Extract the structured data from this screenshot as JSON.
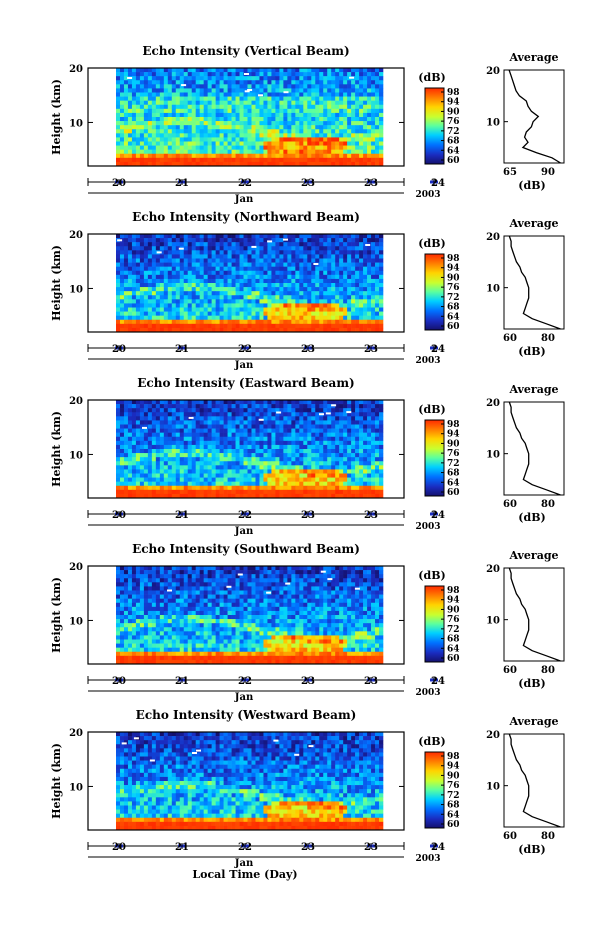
{
  "figure": {
    "xlabel": "Local Time (Day)",
    "colorbar_unit": "(dB)",
    "colorbar_ticks": [
      "98",
      "94",
      "90",
      "76",
      "72",
      "68",
      "64",
      "60"
    ],
    "colorbar_colors": [
      "#ff2a00",
      "#ff7a00",
      "#ffd400",
      "#c8ff30",
      "#5affa0",
      "#00d0ff",
      "#0070ff",
      "#1a2cc0",
      "#14106e"
    ],
    "height_label": "Height (km)",
    "height_ticks": [
      "20",
      "10"
    ],
    "day_ticks": [
      "20",
      "21",
      "22",
      "23",
      "23",
      "24"
    ],
    "month_label": "Jan",
    "year_label": "2003",
    "avg_title": "Average",
    "avg_xlabel": "(dB)"
  },
  "chart_data": [
    {
      "type": "heatmap",
      "title": "Echo Intensity (Vertical Beam)",
      "ylabel": "Height (km)",
      "ylim": [
        2,
        20
      ],
      "x_ticks": [
        "20",
        "21",
        "22",
        "23",
        "23",
        "24"
      ],
      "x_day_range": [
        19.5,
        24.5
      ],
      "colorbar_label": "(dB)",
      "colorbar_range": [
        60,
        98
      ],
      "average_profile": {
        "title": "Average",
        "xlabel": "(dB)",
        "x_ticks": [
          "65",
          "90"
        ],
        "xlim": [
          60,
          95
        ],
        "height": [
          20,
          19,
          18,
          17,
          16,
          15,
          14,
          13,
          12,
          11,
          10,
          9,
          8,
          7,
          6,
          5,
          4,
          3,
          2
        ],
        "db": [
          63,
          64,
          65,
          66,
          67,
          69,
          73,
          74,
          76,
          80,
          77,
          76,
          73,
          72,
          74,
          71,
          79,
          88,
          93
        ]
      }
    },
    {
      "type": "heatmap",
      "title": "Echo Intensity (Northward Beam)",
      "ylabel": "Height (km)",
      "ylim": [
        2,
        20
      ],
      "x_ticks": [
        "20",
        "21",
        "22",
        "23",
        "23",
        "24"
      ],
      "x_day_range": [
        19.5,
        24.5
      ],
      "colorbar_label": "(dB)",
      "colorbar_range": [
        60,
        98
      ],
      "average_profile": {
        "title": "Average",
        "xlabel": "(dB)",
        "x_ticks": [
          "60",
          "80"
        ],
        "xlim": [
          58,
          92
        ],
        "height": [
          20,
          19,
          18,
          17,
          16,
          15,
          14,
          13,
          12,
          11,
          10,
          9,
          8,
          7,
          6,
          5,
          4,
          3,
          2
        ],
        "db": [
          61,
          62,
          62,
          63,
          64,
          65,
          67,
          68,
          70,
          71,
          72,
          72,
          72,
          71,
          70,
          69,
          74,
          82,
          90
        ]
      }
    },
    {
      "type": "heatmap",
      "title": "Echo Intensity (Eastward Beam)",
      "ylabel": "Height (km)",
      "ylim": [
        2,
        20
      ],
      "x_ticks": [
        "20",
        "21",
        "22",
        "23",
        "23",
        "24"
      ],
      "x_day_range": [
        19.5,
        24.5
      ],
      "colorbar_label": "(dB)",
      "colorbar_range": [
        60,
        98
      ],
      "average_profile": {
        "title": "Average",
        "xlabel": "(dB)",
        "x_ticks": [
          "60",
          "80"
        ],
        "xlim": [
          58,
          92
        ],
        "height": [
          20,
          19,
          18,
          17,
          16,
          15,
          14,
          13,
          12,
          11,
          10,
          9,
          8,
          7,
          6,
          5,
          4,
          3,
          2
        ],
        "db": [
          61,
          62,
          62,
          63,
          64,
          65,
          67,
          68,
          70,
          71,
          72,
          72,
          72,
          71,
          70,
          69,
          74,
          82,
          90
        ]
      }
    },
    {
      "type": "heatmap",
      "title": "Echo Intensity (Southward Beam)",
      "ylabel": "Height (km)",
      "ylim": [
        2,
        20
      ],
      "x_ticks": [
        "20",
        "21",
        "22",
        "23",
        "23",
        "24"
      ],
      "x_day_range": [
        19.5,
        24.5
      ],
      "colorbar_label": "(dB)",
      "colorbar_range": [
        60,
        98
      ],
      "average_profile": {
        "title": "Average",
        "xlabel": "(dB)",
        "x_ticks": [
          "60",
          "80"
        ],
        "xlim": [
          58,
          92
        ],
        "height": [
          20,
          19,
          18,
          17,
          16,
          15,
          14,
          13,
          12,
          11,
          10,
          9,
          8,
          7,
          6,
          5,
          4,
          3,
          2
        ],
        "db": [
          61,
          62,
          62,
          63,
          64,
          65,
          67,
          68,
          70,
          71,
          72,
          72,
          72,
          71,
          70,
          69,
          74,
          82,
          90
        ]
      }
    },
    {
      "type": "heatmap",
      "title": "Echo Intensity (Westward Beam)",
      "ylabel": "Height (km)",
      "ylim": [
        2,
        20
      ],
      "x_ticks": [
        "20",
        "21",
        "22",
        "23",
        "23",
        "24"
      ],
      "x_day_range": [
        19.5,
        24.5
      ],
      "colorbar_label": "(dB)",
      "colorbar_range": [
        60,
        98
      ],
      "average_profile": {
        "title": "Average",
        "xlabel": "(dB)",
        "x_ticks": [
          "60",
          "80"
        ],
        "xlim": [
          58,
          92
        ],
        "height": [
          20,
          19,
          18,
          17,
          16,
          15,
          14,
          13,
          12,
          11,
          10,
          9,
          8,
          7,
          6,
          5,
          4,
          3,
          2
        ],
        "db": [
          61,
          62,
          62,
          63,
          64,
          65,
          67,
          68,
          70,
          71,
          72,
          72,
          72,
          71,
          70,
          69,
          74,
          82,
          90
        ]
      }
    }
  ]
}
